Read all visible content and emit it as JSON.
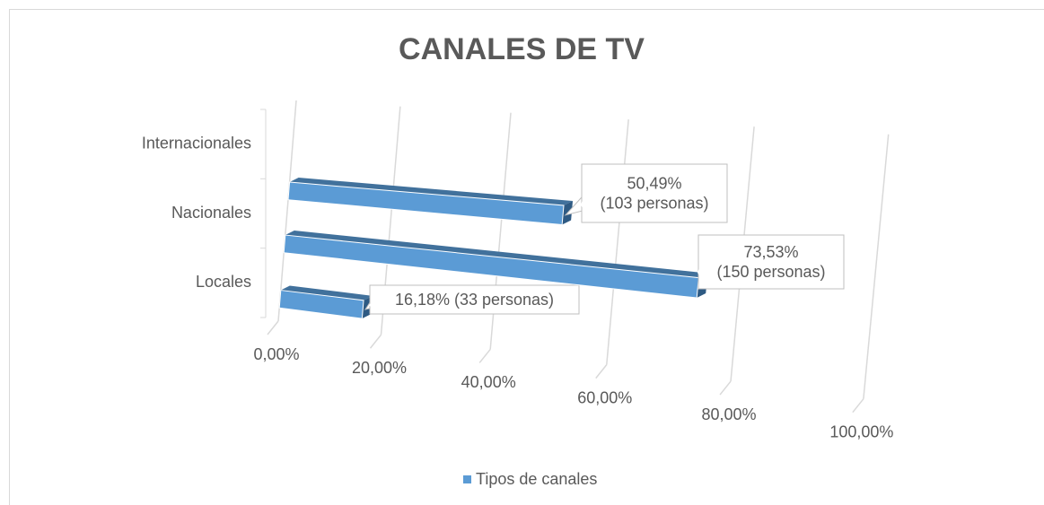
{
  "chart_data": {
    "type": "bar3d",
    "title": "CANALES DE TV",
    "categories": [
      "Locales",
      "Nacionales",
      "Internacionales"
    ],
    "series": [
      {
        "name": "Tipos de canales",
        "color": "#5b9bd5",
        "values": [
          16.18,
          73.53,
          50.49
        ],
        "value_labels": [
          "16,18% (33 personas)",
          "73,53%\n(150 personas)",
          "50,49%\n(103 personas)"
        ]
      }
    ],
    "xlim": [
      0,
      100
    ],
    "xticks": [
      {
        "value": 0,
        "label": "0,00%"
      },
      {
        "value": 20,
        "label": "20,00%"
      },
      {
        "value": 40,
        "label": "40,00%"
      },
      {
        "value": 60,
        "label": "60,00%"
      },
      {
        "value": 80,
        "label": "80,00%"
      },
      {
        "value": 100,
        "label": "100,00%"
      }
    ],
    "grid": true,
    "legend": "bottom"
  }
}
